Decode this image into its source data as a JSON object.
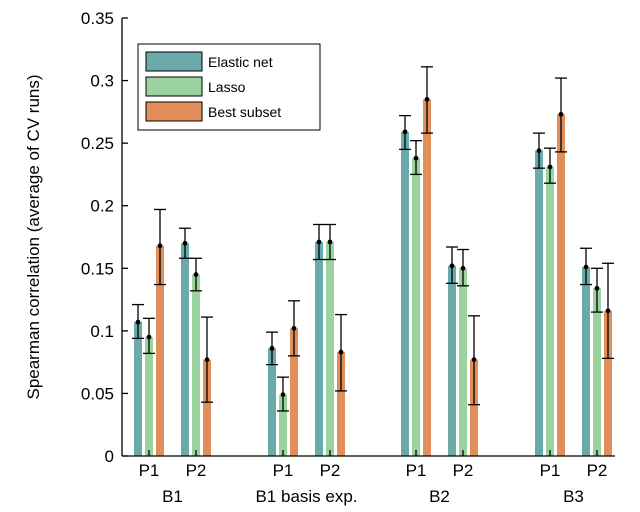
{
  "chart_data": {
    "type": "bar",
    "title": "",
    "xlabel": "",
    "ylabel": "Spearman correlation (average of CV runs)",
    "ylim": [
      0,
      0.35
    ],
    "yticks": [
      0,
      0.05,
      0.1,
      0.15,
      0.2,
      0.25,
      0.3,
      0.35
    ],
    "ytick_labels": [
      "0",
      "0.05",
      "0.1",
      "0.15",
      "0.2",
      "0.25",
      "0.3",
      "0.35"
    ],
    "grid": false,
    "legend_position": "top-left",
    "groups": [
      {
        "label": "B1",
        "subgroups": [
          "P1",
          "P2"
        ]
      },
      {
        "label": "B1 basis exp.",
        "subgroups": [
          "P1",
          "P2"
        ]
      },
      {
        "label": "B2",
        "subgroups": [
          "P1",
          "P2"
        ]
      },
      {
        "label": "B3",
        "subgroups": [
          "P1",
          "P2"
        ]
      }
    ],
    "series": [
      {
        "name": "Elastic net",
        "color": "#6AABA9",
        "values": [
          0.107,
          0.17,
          0.086,
          0.171,
          0.259,
          0.152,
          0.244,
          0.151
        ],
        "err_low": [
          0.094,
          0.158,
          0.073,
          0.157,
          0.245,
          0.138,
          0.23,
          0.137
        ],
        "err_high": [
          0.121,
          0.182,
          0.099,
          0.185,
          0.272,
          0.167,
          0.258,
          0.166
        ]
      },
      {
        "name": "Lasso",
        "color": "#9BD39F",
        "values": [
          0.095,
          0.145,
          0.049,
          0.171,
          0.238,
          0.15,
          0.231,
          0.134
        ],
        "err_low": [
          0.082,
          0.132,
          0.036,
          0.157,
          0.225,
          0.136,
          0.218,
          0.115
        ],
        "err_high": [
          0.11,
          0.158,
          0.063,
          0.185,
          0.252,
          0.165,
          0.246,
          0.15
        ]
      },
      {
        "name": "Best subset",
        "color": "#E08F5A",
        "values": [
          0.168,
          0.077,
          0.102,
          0.083,
          0.285,
          0.077,
          0.273,
          0.116
        ],
        "err_low": [
          0.137,
          0.043,
          0.08,
          0.052,
          0.258,
          0.041,
          0.243,
          0.078
        ],
        "err_high": [
          0.197,
          0.111,
          0.124,
          0.113,
          0.311,
          0.112,
          0.302,
          0.154
        ]
      }
    ]
  }
}
